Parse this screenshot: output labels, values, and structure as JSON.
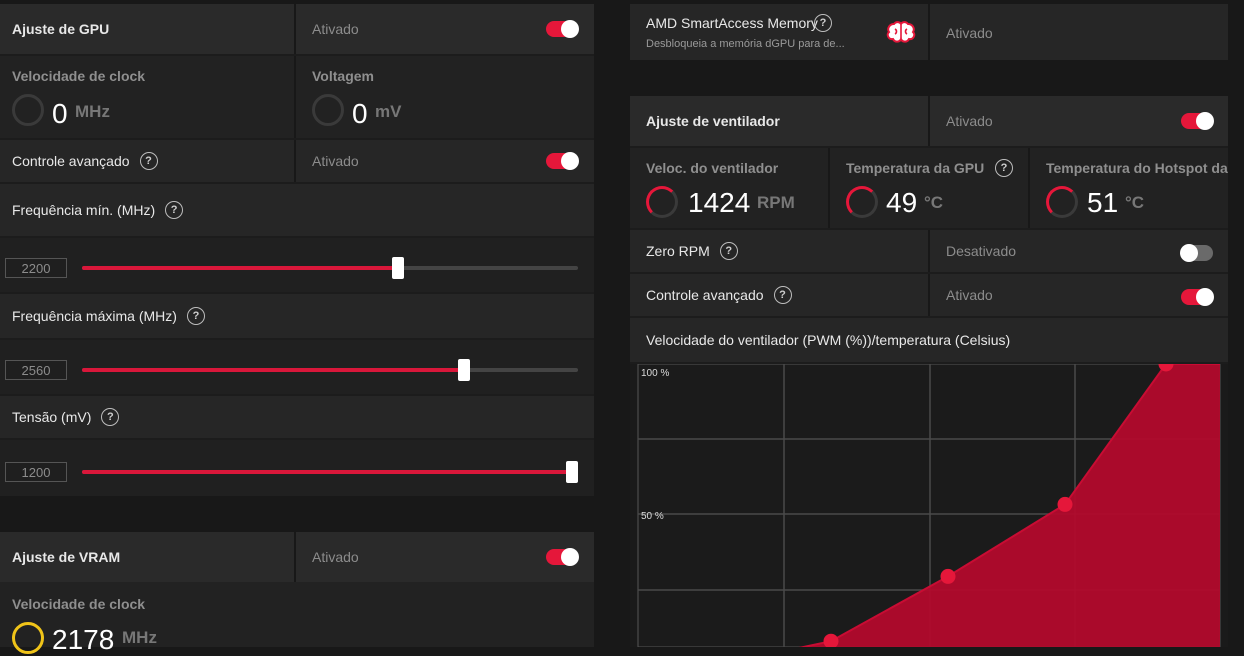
{
  "gpu_tuning": {
    "title": "Ajuste de GPU",
    "status": "Ativado",
    "enabled": true
  },
  "clock": {
    "label": "Velocidade de clock",
    "value": "0",
    "unit": "MHz"
  },
  "voltage": {
    "label": "Voltagem",
    "value": "0",
    "unit": "mV"
  },
  "advanced_control": {
    "label": "Controle avançado",
    "status": "Ativado",
    "enabled": true
  },
  "freq_min": {
    "label": "Frequência mín. (MHz)",
    "value": "2200",
    "fraction": 0.64
  },
  "freq_max": {
    "label": "Frequência máxima (MHz)",
    "value": "2560",
    "fraction": 0.77
  },
  "tension": {
    "label": "Tensão (mV)",
    "value": "1200",
    "fraction": 1.0
  },
  "vram_tuning": {
    "title": "Ajuste de VRAM",
    "status": "Ativado",
    "enabled": true
  },
  "vram_clock": {
    "label": "Velocidade de clock",
    "value": "2178",
    "unit": "MHz"
  },
  "sam": {
    "title": "AMD SmartAccess Memory",
    "description": "Desbloqueia a memória dGPU para de...",
    "status": "Ativado"
  },
  "fan_tuning": {
    "title": "Ajuste de ventilador",
    "status": "Ativado",
    "enabled": true
  },
  "fan_speed": {
    "label": "Veloc. do ventilador",
    "value": "1424",
    "unit": "RPM"
  },
  "gpu_temp": {
    "label": "Temperatura da GPU",
    "value": "49",
    "unit": "°C"
  },
  "hotspot_temp": {
    "label": "Temperatura do Hotspot da",
    "value": "51",
    "unit": "°C"
  },
  "zero_rpm": {
    "label": "Zero RPM",
    "status": "Desativado",
    "enabled": false
  },
  "fan_advanced": {
    "label": "Controle avançado",
    "status": "Ativado",
    "enabled": true
  },
  "fan_curve": {
    "title": "Velocidade do ventilador (PWM (%))/temperatura (Celsius)"
  },
  "colors": {
    "accent": "#e5173a",
    "curve_fill": "#b20a2c",
    "ring_yellow": "#f0c419"
  },
  "chart_data": {
    "type": "area",
    "title": "Velocidade do ventilador (PWM (%))/temperatura (Celsius)",
    "ytick_labels": [
      "100 %",
      "50 %"
    ],
    "ylim": [
      0,
      100
    ],
    "series": [
      {
        "points": [
          [
            0,
            14
          ],
          [
            1,
            23
          ],
          [
            2,
            41
          ],
          [
            3,
            61
          ],
          [
            4,
            100
          ]
        ]
      }
    ]
  }
}
